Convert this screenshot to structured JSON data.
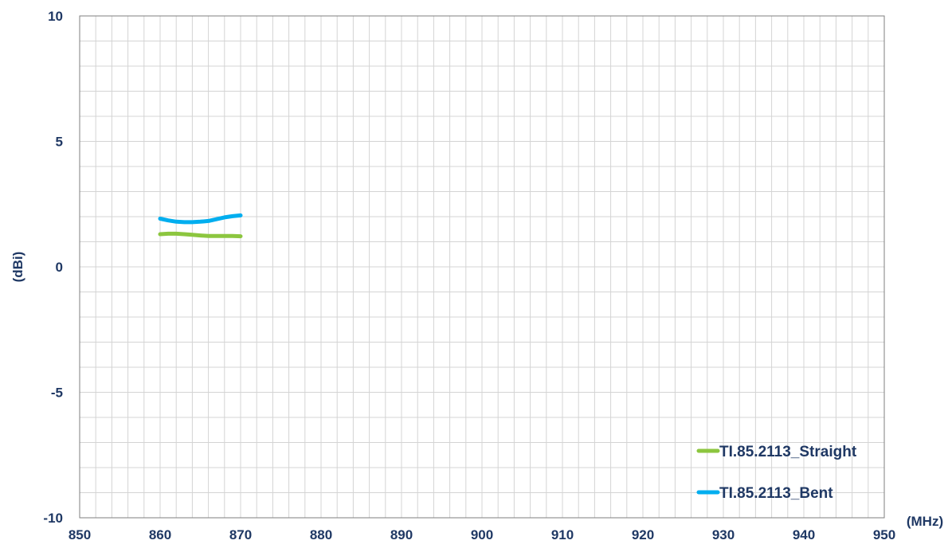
{
  "chart_data": {
    "type": "line",
    "title": "",
    "xlabel": "(MHz)",
    "ylabel": "(dBi)",
    "xlim": [
      850,
      950
    ],
    "ylim": [
      -10,
      10
    ],
    "x_ticks": [
      850,
      860,
      870,
      880,
      890,
      900,
      910,
      920,
      930,
      940,
      950
    ],
    "y_ticks": [
      10,
      5,
      0,
      -5,
      -10
    ],
    "x_minor_step": 2,
    "y_minor_step": 1,
    "grid": true,
    "legend": "bottom-right",
    "series": [
      {
        "name": "TI.85.2113_Straight",
        "color": "#8cc63f",
        "x": [
          860,
          861,
          862,
          863,
          864,
          865,
          866,
          867,
          868,
          869,
          870
        ],
        "y": [
          1.3,
          1.32,
          1.32,
          1.3,
          1.28,
          1.25,
          1.23,
          1.23,
          1.23,
          1.23,
          1.22
        ]
      },
      {
        "name": "TI.85.2113_Bent",
        "color": "#00aeef",
        "x": [
          860,
          861,
          862,
          863,
          864,
          865,
          866,
          867,
          868,
          869,
          870
        ],
        "y": [
          1.92,
          1.85,
          1.8,
          1.78,
          1.78,
          1.8,
          1.83,
          1.9,
          1.97,
          2.02,
          2.05
        ]
      }
    ]
  }
}
